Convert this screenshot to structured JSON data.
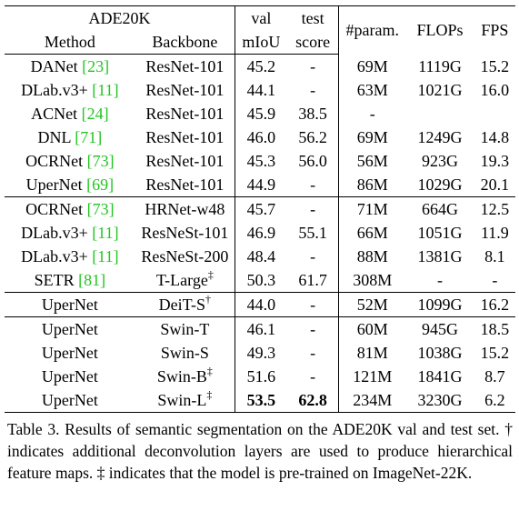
{
  "header": {
    "dataset": "ADE20K",
    "method": "Method",
    "backbone": "Backbone",
    "val_top": "val",
    "val_bottom": "mIoU",
    "test_top": "test",
    "test_bottom": "score",
    "params": "#param.",
    "flops": "FLOPs",
    "fps": "FPS"
  },
  "rows": [
    {
      "method": "DANet",
      "ref": "[23]",
      "backbone": "ResNet-101",
      "mark": "",
      "val": "45.2",
      "test": "-",
      "params": "69M",
      "flops": "1119G",
      "fps": "15.2"
    },
    {
      "method": "DLab.v3+",
      "ref": "[11]",
      "backbone": "ResNet-101",
      "mark": "",
      "val": "44.1",
      "test": "-",
      "params": "63M",
      "flops": "1021G",
      "fps": "16.0"
    },
    {
      "method": "ACNet",
      "ref": "[24]",
      "backbone": "ResNet-101",
      "mark": "",
      "val": "45.9",
      "test": "38.5",
      "params": "-",
      "flops": "",
      "fps": ""
    },
    {
      "method": "DNL",
      "ref": "[71]",
      "backbone": "ResNet-101",
      "mark": "",
      "val": "46.0",
      "test": "56.2",
      "params": "69M",
      "flops": "1249G",
      "fps": "14.8"
    },
    {
      "method": "OCRNet",
      "ref": "[73]",
      "backbone": "ResNet-101",
      "mark": "",
      "val": "45.3",
      "test": "56.0",
      "params": "56M",
      "flops": "923G",
      "fps": "19.3"
    },
    {
      "method": "UperNet",
      "ref": "[69]",
      "backbone": "ResNet-101",
      "mark": "",
      "val": "44.9",
      "test": "-",
      "params": "86M",
      "flops": "1029G",
      "fps": "20.1"
    },
    {
      "method": "OCRNet",
      "ref": "[73]",
      "backbone": "HRNet-w48",
      "mark": "",
      "val": "45.7",
      "test": "-",
      "params": "71M",
      "flops": "664G",
      "fps": "12.5"
    },
    {
      "method": "DLab.v3+",
      "ref": "[11]",
      "backbone": "ResNeSt-101",
      "mark": "",
      "val": "46.9",
      "test": "55.1",
      "params": "66M",
      "flops": "1051G",
      "fps": "11.9"
    },
    {
      "method": "DLab.v3+",
      "ref": "[11]",
      "backbone": "ResNeSt-200",
      "mark": "",
      "val": "48.4",
      "test": "-",
      "params": "88M",
      "flops": "1381G",
      "fps": "8.1"
    },
    {
      "method": "SETR",
      "ref": "[81]",
      "backbone": "T-Large",
      "mark": "‡",
      "val": "50.3",
      "test": "61.7",
      "params": "308M",
      "flops": "-",
      "fps": "-"
    },
    {
      "method": "UperNet",
      "ref": "",
      "backbone": "DeiT-S",
      "mark": "†",
      "val": "44.0",
      "test": "-",
      "params": "52M",
      "flops": "1099G",
      "fps": "16.2"
    },
    {
      "method": "UperNet",
      "ref": "",
      "backbone": "Swin-T",
      "mark": "",
      "val": "46.1",
      "test": "-",
      "params": "60M",
      "flops": "945G",
      "fps": "18.5"
    },
    {
      "method": "UperNet",
      "ref": "",
      "backbone": "Swin-S",
      "mark": "",
      "val": "49.3",
      "test": "-",
      "params": "81M",
      "flops": "1038G",
      "fps": "15.2"
    },
    {
      "method": "UperNet",
      "ref": "",
      "backbone": "Swin-B",
      "mark": "‡",
      "val": "51.6",
      "test": "-",
      "params": "121M",
      "flops": "1841G",
      "fps": "8.7"
    },
    {
      "method": "UperNet",
      "ref": "",
      "backbone": "Swin-L",
      "mark": "‡",
      "val": "53.5",
      "test": "62.8",
      "params": "234M",
      "flops": "3230G",
      "fps": "6.2"
    }
  ],
  "caption": "Table 3. Results of semantic segmentation on the ADE20K val and test set. † indicates additional deconvolution layers are used to produce hierarchical feature maps. ‡ indicates that the model is pre-trained on ImageNet-22K."
}
